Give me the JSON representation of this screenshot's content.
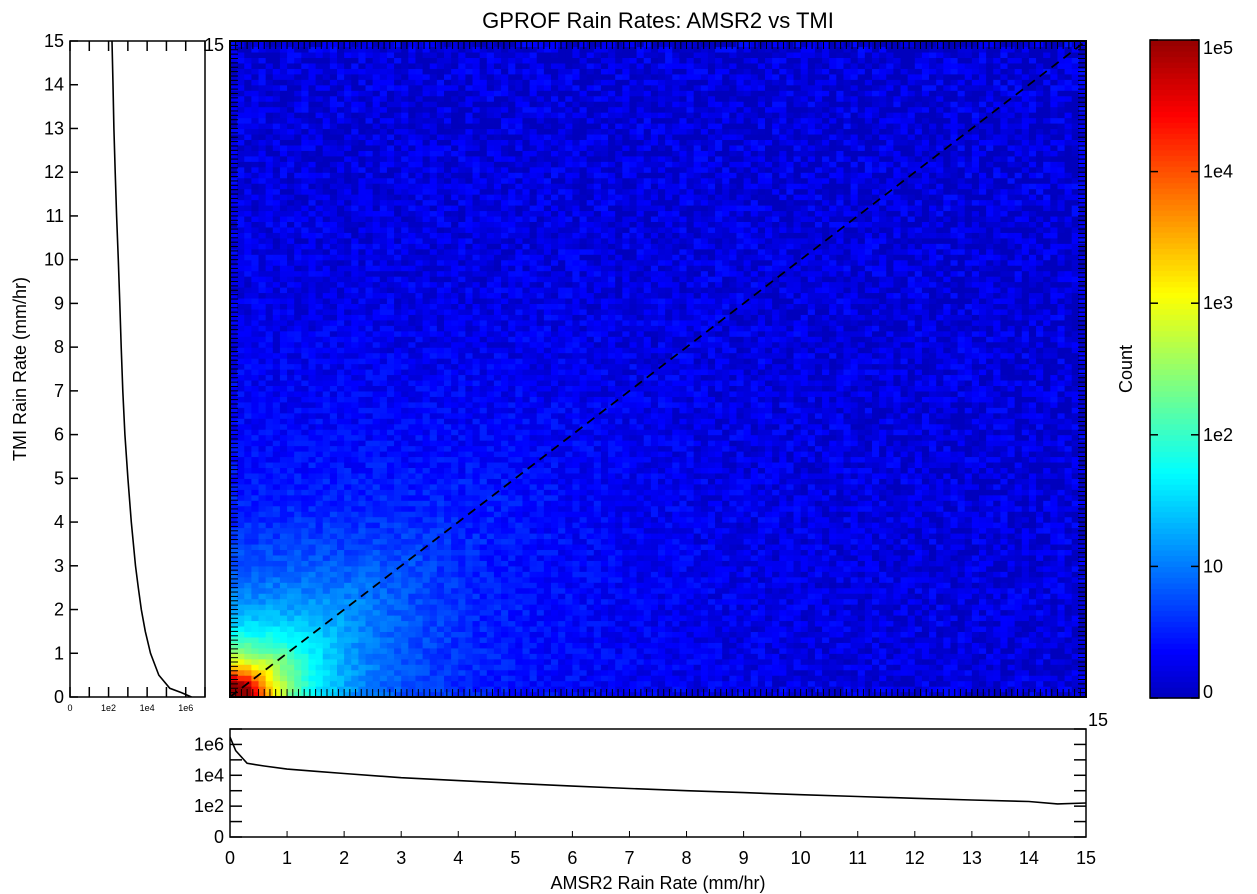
{
  "chart_data": [
    {
      "id": "heatmap",
      "type": "heatmap",
      "title": "GPROF Rain Rates: AMSR2 vs TMI",
      "xlabel": "AMSR2 Rain Rate (mm/hr)",
      "ylabel": "TMI Rain Rate (mm/hr)",
      "xlim": [
        0,
        15
      ],
      "ylim": [
        0,
        15
      ],
      "x_ticks": [
        "0",
        "1",
        "2",
        "3",
        "4",
        "5",
        "6",
        "7",
        "8",
        "9",
        "10",
        "11",
        "12",
        "13",
        "14",
        "15"
      ],
      "y_ticks": [
        "0",
        "1",
        "2",
        "3",
        "4",
        "5",
        "6",
        "7",
        "8",
        "9",
        "10",
        "11",
        "12",
        "13",
        "14",
        "15"
      ],
      "top_right_label": "15",
      "one_to_one_line": {
        "x": [
          0,
          15
        ],
        "y": [
          0,
          15
        ],
        "style": "dashed"
      },
      "color_scale": "log",
      "density_model": {
        "note": "approximate joint count distribution",
        "peak_count": 100000,
        "peak_xy": [
          0.4,
          0.3
        ],
        "grid_bins": 120
      }
    },
    {
      "id": "colorbar",
      "type": "colorbar",
      "label": "Count",
      "ticks": [
        "0",
        "10",
        "1e2",
        "1e3",
        "1e4",
        "1e5"
      ],
      "tick_values": [
        1,
        10,
        100,
        1000,
        10000,
        100000
      ],
      "colormap": "jet",
      "colors": [
        "#00008f",
        "#0000ff",
        "#00ffff",
        "#ffff00",
        "#ff0000",
        "#800000"
      ]
    },
    {
      "id": "left_histogram",
      "type": "line",
      "description_axis": "TMI marginal distribution",
      "x_ticks": [
        "0",
        "1e2",
        "1e4",
        "1e6"
      ],
      "y_ticks": [
        "0",
        "1",
        "2",
        "3",
        "4",
        "5",
        "6",
        "7",
        "8",
        "9",
        "10",
        "11",
        "12",
        "13",
        "14",
        "15"
      ],
      "ylim": [
        0,
        15
      ],
      "xscale": "log",
      "points": [
        {
          "y": 0.0,
          "x": 2000000
        },
        {
          "y": 0.1,
          "x": 600000
        },
        {
          "y": 0.2,
          "x": 150000
        },
        {
          "y": 0.5,
          "x": 40000
        },
        {
          "y": 1.0,
          "x": 15000
        },
        {
          "y": 1.5,
          "x": 8000
        },
        {
          "y": 2.0,
          "x": 5000
        },
        {
          "y": 2.5,
          "x": 3500
        },
        {
          "y": 3.0,
          "x": 2500
        },
        {
          "y": 4.0,
          "x": 1500
        },
        {
          "y": 5.0,
          "x": 1000
        },
        {
          "y": 6.0,
          "x": 700
        },
        {
          "y": 7.0,
          "x": 550
        },
        {
          "y": 8.0,
          "x": 450
        },
        {
          "y": 9.0,
          "x": 380
        },
        {
          "y": 10.0,
          "x": 320
        },
        {
          "y": 11.0,
          "x": 260
        },
        {
          "y": 12.0,
          "x": 220
        },
        {
          "y": 13.0,
          "x": 190
        },
        {
          "y": 14.0,
          "x": 170
        },
        {
          "y": 15.0,
          "x": 150
        }
      ]
    },
    {
      "id": "bottom_histogram",
      "type": "line",
      "description_axis": "AMSR2 marginal distribution",
      "x_ticks": [
        "0",
        "1",
        "2",
        "3",
        "4",
        "5",
        "6",
        "7",
        "8",
        "9",
        "10",
        "11",
        "12",
        "13",
        "14",
        "15"
      ],
      "y_ticks": [
        "0",
        "1e2",
        "1e4",
        "1e6"
      ],
      "top_right_label": "15",
      "xlim": [
        0,
        15
      ],
      "yscale": "log",
      "points": [
        {
          "x": 0.0,
          "y": 3000000
        },
        {
          "x": 0.1,
          "y": 400000
        },
        {
          "x": 0.3,
          "y": 60000
        },
        {
          "x": 0.6,
          "y": 40000
        },
        {
          "x": 1.0,
          "y": 25000
        },
        {
          "x": 1.5,
          "y": 18000
        },
        {
          "x": 2.0,
          "y": 13000
        },
        {
          "x": 3.0,
          "y": 7000
        },
        {
          "x": 4.0,
          "y": 4500
        },
        {
          "x": 5.0,
          "y": 3000
        },
        {
          "x": 6.0,
          "y": 2000
        },
        {
          "x": 7.0,
          "y": 1400
        },
        {
          "x": 8.0,
          "y": 1000
        },
        {
          "x": 9.0,
          "y": 750
        },
        {
          "x": 10.0,
          "y": 550
        },
        {
          "x": 11.0,
          "y": 420
        },
        {
          "x": 12.0,
          "y": 320
        },
        {
          "x": 13.0,
          "y": 250
        },
        {
          "x": 14.0,
          "y": 200
        },
        {
          "x": 14.5,
          "y": 140
        },
        {
          "x": 15.0,
          "y": 160
        }
      ]
    }
  ]
}
